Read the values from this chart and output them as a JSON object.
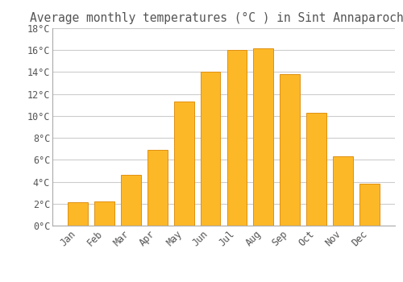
{
  "title": "Average monthly temperatures (°C ) in Sint Annaparochie",
  "months": [
    "Jan",
    "Feb",
    "Mar",
    "Apr",
    "May",
    "Jun",
    "Jul",
    "Aug",
    "Sep",
    "Oct",
    "Nov",
    "Dec"
  ],
  "values": [
    2.1,
    2.2,
    4.6,
    6.9,
    11.3,
    14.0,
    16.0,
    16.2,
    13.8,
    10.3,
    6.3,
    3.8
  ],
  "bar_color": "#FDB827",
  "bar_edge_color": "#E09010",
  "background_color": "#FFFFFF",
  "grid_color": "#CCCCCC",
  "text_color": "#555555",
  "ylim": [
    0,
    18
  ],
  "yticks": [
    0,
    2,
    4,
    6,
    8,
    10,
    12,
    14,
    16,
    18
  ],
  "ytick_labels": [
    "0°C",
    "2°C",
    "4°C",
    "6°C",
    "8°C",
    "10°C",
    "12°C",
    "14°C",
    "16°C",
    "18°C"
  ],
  "title_fontsize": 10.5,
  "tick_fontsize": 8.5
}
